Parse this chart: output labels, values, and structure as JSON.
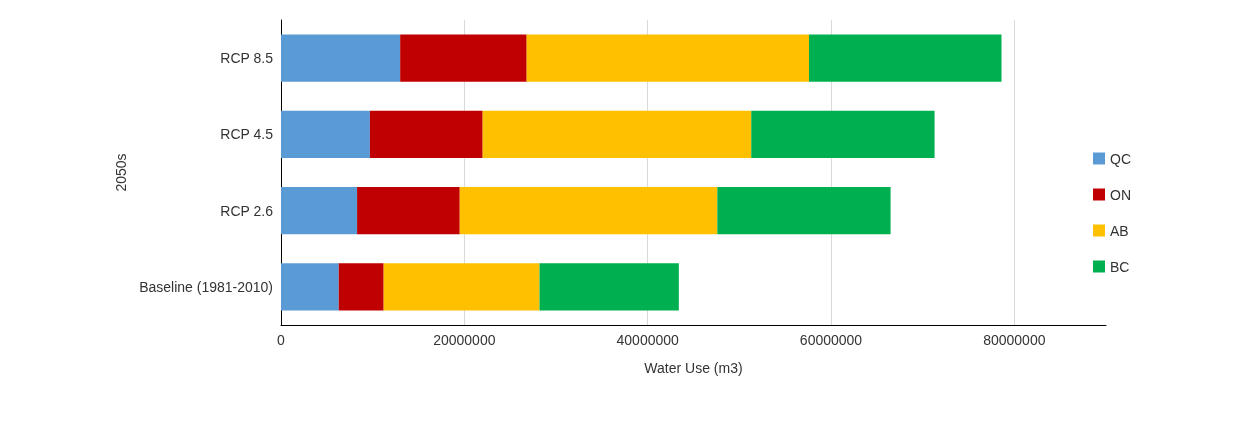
{
  "chart_data": {
    "type": "bar",
    "orientation": "horizontal",
    "stacked": true,
    "categories": [
      "RCP 8.5",
      "RCP 4.5",
      "RCP 2.6",
      "Baseline (1981-2010)"
    ],
    "series": [
      {
        "name": "QC",
        "color": "#5b9bd5",
        "values": [
          13000000,
          9700000,
          8300000,
          6300000
        ]
      },
      {
        "name": "ON",
        "color": "#c00000",
        "values": [
          13800000,
          12300000,
          11200000,
          4900000
        ]
      },
      {
        "name": "AB",
        "color": "#ffc000",
        "values": [
          30800000,
          29300000,
          28100000,
          17000000
        ]
      },
      {
        "name": "BC",
        "color": "#00b050",
        "values": [
          21000000,
          20000000,
          18900000,
          15200000
        ]
      }
    ],
    "xlim": [
      0,
      90000000
    ],
    "xticks": [
      0,
      20000000,
      40000000,
      60000000,
      80000000
    ],
    "xlabel": "Water Use (m3)",
    "ylabel": "2050s",
    "grid": "x",
    "legend": "right"
  }
}
